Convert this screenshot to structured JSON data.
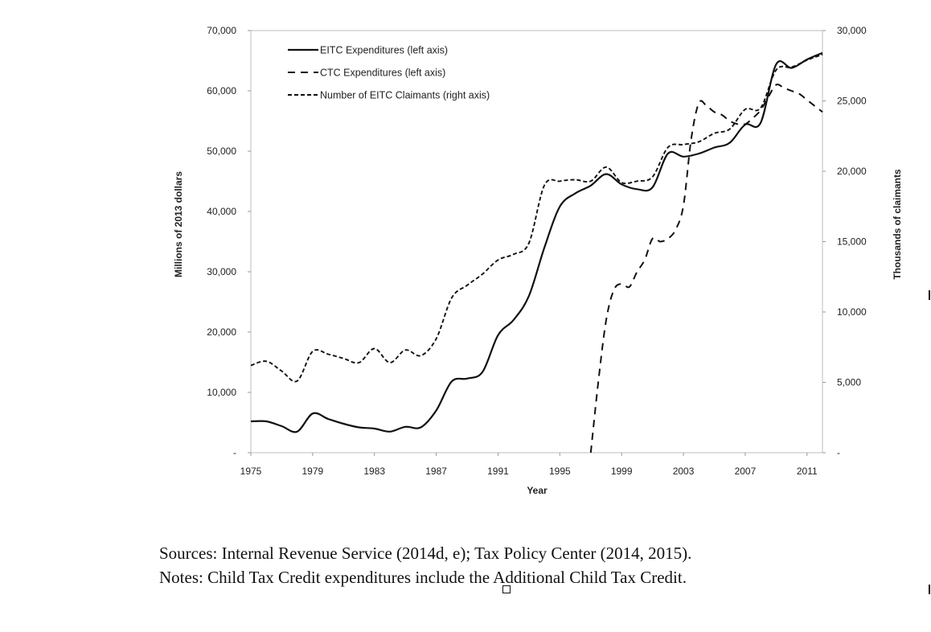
{
  "chart_data": {
    "type": "line",
    "title": "",
    "xlabel": "Year",
    "ylabel": "Millions of 2013 dollars",
    "y2label": "Thousands of claimants",
    "xlim": [
      1975,
      2012
    ],
    "ylim": [
      0,
      70000
    ],
    "y2lim": [
      0,
      30000
    ],
    "x_ticks": [
      1975,
      1979,
      1983,
      1987,
      1991,
      1995,
      1999,
      2003,
      2007,
      2011
    ],
    "x_tick_labels": [
      "1975",
      "1979",
      "1983",
      "1987",
      "1991",
      "1995",
      "1999",
      "2003",
      "2007",
      "2011"
    ],
    "y_ticks": [
      0,
      10000,
      20000,
      30000,
      40000,
      50000,
      60000,
      70000
    ],
    "y_tick_labels": [
      "-",
      "10,000",
      "20,000",
      "30,000",
      "40,000",
      "50,000",
      "60,000",
      "70,000"
    ],
    "y2_ticks": [
      0,
      5000,
      10000,
      15000,
      20000,
      25000,
      30000
    ],
    "y2_tick_labels": [
      "-",
      "5,000",
      "10,000",
      "15,000",
      "20,000",
      "25,000",
      "30,000"
    ],
    "legend_position": "top-left",
    "series": [
      {
        "name": "EITC Expenditures (left axis)",
        "axis": "left",
        "style": "solid",
        "x": [
          1975,
          1976,
          1977,
          1978,
          1979,
          1980,
          1981,
          1982,
          1983,
          1984,
          1985,
          1986,
          1987,
          1988,
          1989,
          1990,
          1991,
          1992,
          1993,
          1994,
          1995,
          1996,
          1997,
          1998,
          1999,
          2000,
          2001,
          2002,
          2003,
          2004,
          2005,
          2006,
          2007,
          2008,
          2009,
          2010,
          2011,
          2012
        ],
        "values": [
          5200,
          5200,
          4400,
          3500,
          6500,
          5600,
          4800,
          4200,
          4000,
          3500,
          4300,
          4200,
          7000,
          11800,
          12300,
          13400,
          19500,
          22000,
          26000,
          34000,
          40800,
          43000,
          44300,
          46200,
          44500,
          43700,
          44000,
          49600,
          49100,
          49600,
          50600,
          51400,
          54400,
          54700,
          64400,
          63800,
          65200,
          66300
        ]
      },
      {
        "name": "CTC Expenditures (left axis)",
        "axis": "left",
        "style": "dashed",
        "x": [
          1997,
          1997.5,
          1998,
          1998.5,
          1999,
          1999.5,
          2000,
          2000.5,
          2001,
          2001.5,
          2002,
          2002.5,
          2003,
          2003.5,
          2004,
          2004.5,
          2005,
          2005.5,
          2006,
          2006.5,
          2007,
          2007.5,
          2008,
          2008.5,
          2009,
          2009.5,
          2010,
          2010.5,
          2011,
          2011.5,
          2012
        ],
        "values": [
          0,
          12000,
          22000,
          27000,
          28000,
          27500,
          30000,
          32000,
          35500,
          35000,
          35500,
          37000,
          41000,
          52000,
          58000,
          57500,
          56500,
          56000,
          55000,
          54500,
          54500,
          55500,
          56800,
          59000,
          61000,
          60500,
          60000,
          59500,
          58500,
          57500,
          56500
        ]
      },
      {
        "name": "Number of EITC Claimants (right axis)",
        "axis": "right",
        "style": "dotted",
        "x": [
          1975,
          1976,
          1977,
          1978,
          1979,
          1980,
          1981,
          1982,
          1983,
          1984,
          1985,
          1986,
          1987,
          1988,
          1989,
          1990,
          1991,
          1992,
          1993,
          1994,
          1995,
          1996,
          1997,
          1998,
          1999,
          2000,
          2001,
          2002,
          2003,
          2004,
          2005,
          2006,
          2007,
          2008,
          2009,
          2010,
          2011,
          2012
        ],
        "values": [
          6200,
          6500,
          5800,
          5100,
          7200,
          7000,
          6700,
          6400,
          7400,
          6400,
          7300,
          6900,
          8100,
          11000,
          11900,
          12700,
          13700,
          14100,
          14900,
          19000,
          19300,
          19400,
          19300,
          20300,
          19200,
          19300,
          19600,
          21700,
          21900,
          22100,
          22700,
          23000,
          24400,
          24500,
          27200,
          27400,
          27900,
          28300
        ]
      }
    ]
  },
  "notes": {
    "sources": "Sources: Internal Revenue Service (2014d, e); Tax Policy Center (2014, 2015).",
    "notes": "Notes: Child Tax Credit expenditures include the Additional Child Tax Credit."
  }
}
